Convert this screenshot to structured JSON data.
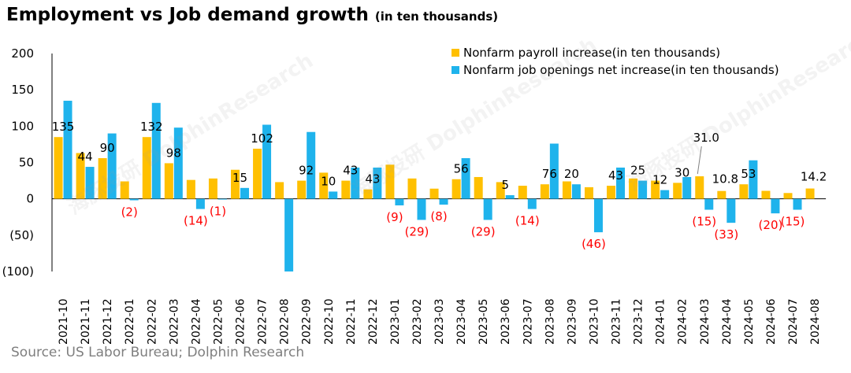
{
  "title": "Employment vs Job demand growth",
  "subtitle": "(in ten thousands)",
  "source": "Source: US Labor Bureau; Dolphin Research",
  "watermark": "海豚投研 DolphinResearch",
  "colors": {
    "payroll": "#FFC000",
    "openings": "#1FB3EC",
    "negative_label": "#FF0000",
    "axis": "#000000"
  },
  "chart_data": {
    "type": "bar",
    "title": "Employment vs Job demand growth",
    "xlabel": "",
    "ylabel": "",
    "ylim": [
      -100,
      200
    ],
    "yticks": [
      200,
      150,
      100,
      50,
      0,
      -50,
      -100
    ],
    "ytick_labels": [
      "200",
      "150",
      "100",
      "50",
      "0",
      "(50)",
      "(100)"
    ],
    "grid": false,
    "legend_position": "top-right",
    "categories": [
      "2021-10",
      "2021-11",
      "2021-12",
      "2022-01",
      "2022-02",
      "2022-03",
      "2022-04",
      "2022-05",
      "2022-06",
      "2022-07",
      "2022-08",
      "2022-09",
      "2022-10",
      "2022-11",
      "2022-12",
      "2023-01",
      "2023-02",
      "2023-03",
      "2023-04",
      "2023-05",
      "2023-06",
      "2023-07",
      "2023-08",
      "2023-09",
      "2023-10",
      "2023-11",
      "2023-12",
      "2024-01",
      "2024-02",
      "2024-03",
      "2024-04",
      "2024-05",
      "2024-06",
      "2024-07",
      "2024-08"
    ],
    "series": [
      {
        "name": "Nonfarm payroll increase(in ten thousands)",
        "values": [
          85,
          63,
          56,
          24,
          85,
          49,
          26,
          28,
          40,
          69,
          23,
          25,
          36,
          25,
          13,
          47,
          28,
          14,
          27,
          30,
          23,
          18,
          20,
          24,
          16,
          18,
          28,
          25,
          22,
          31.0,
          10.8,
          20,
          11,
          8,
          14.2
        ]
      },
      {
        "name": "Nonfarm job openings net increase(in ten thousands)",
        "values": [
          135,
          44,
          90,
          -2,
          132,
          98,
          -14,
          -1,
          15,
          102,
          -100,
          92,
          10,
          43,
          43,
          -9,
          -29,
          -8,
          56,
          -29,
          5,
          -14,
          76,
          20,
          -46,
          43,
          25,
          12,
          30,
          -15,
          -33,
          53,
          -20,
          -15,
          null
        ],
        "labels": [
          "135",
          "44",
          "90",
          "(2)",
          "132",
          "98",
          "(14)",
          "(1)",
          "15",
          "102",
          "",
          "92",
          "10",
          "43",
          "43",
          "(9)",
          "(29)",
          "(8)",
          "56",
          "(29)",
          "5",
          "(14)",
          "76",
          "20",
          "(46)",
          "43",
          "25",
          "12",
          "30",
          "(15)",
          "(33)",
          "53",
          "(20)",
          "(15)",
          ""
        ]
      }
    ],
    "payroll_labels": [
      {
        "index": 29,
        "text": "31.0"
      },
      {
        "index": 30,
        "text": "10.8"
      },
      {
        "index": 34,
        "text": "14.2"
      }
    ]
  }
}
